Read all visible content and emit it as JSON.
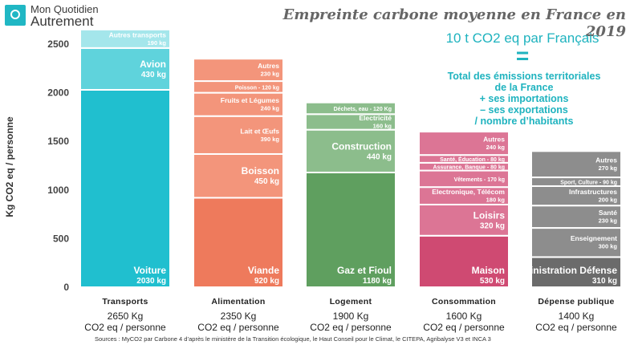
{
  "logo": {
    "line1": "Mon Quotidien",
    "line2": "Autrement"
  },
  "title": "Empreinte carbone moyenne en France en 2019",
  "subtitle": "10 t CO2 eq par Français",
  "equals_sign": "=",
  "definition_lines": [
    "Total des émissions territoriales",
    "de la France",
    "+ ses importations",
    "– ses exportations",
    "/ nombre d’habitants"
  ],
  "source": "Sources : MyCO2 par Carbone 4 d’après le ministère de la Transition écologique, le Haut Conseil pour le Climat, le CITEPA, Agribalyse V3 et INCA 3",
  "chart_data": {
    "type": "bar",
    "stacked": true,
    "ylabel": "Kg CO2 eq / personne",
    "ylim": [
      0,
      2650
    ],
    "yticks": [
      0,
      500,
      1000,
      1500,
      2000,
      2500
    ],
    "grid": false,
    "categories": [
      {
        "name": "Transports",
        "total_label": "2650 Kg",
        "unit_label": "CO2 eq / personne",
        "color": "#20bfcf",
        "segments": [
          {
            "label": "Voiture",
            "value_label": "2030 kg",
            "value": 2030,
            "color": "#20bfcf"
          },
          {
            "label": "Avion",
            "value_label": "430 kg",
            "value": 430,
            "color": "#5fd3dc"
          },
          {
            "label": "Autres transports",
            "value_label": "190 kg",
            "value": 190,
            "color": "#a4e6eb"
          }
        ]
      },
      {
        "name": "Alimentation",
        "total_label": "2350 Kg",
        "unit_label": "CO2 eq / personne",
        "color": "#ee7a5c",
        "segments": [
          {
            "label": "Viande",
            "value_label": "920 kg",
            "value": 920,
            "color": "#ee7a5c"
          },
          {
            "label": "Boisson",
            "value_label": "450 kg",
            "value": 450,
            "color": "#f3957b"
          },
          {
            "label": "Lait et Œufs",
            "value_label": "390 kg",
            "value": 390,
            "color": "#f3957b"
          },
          {
            "label": "Fruits et Légumes",
            "value_label": "240 kg",
            "value": 240,
            "color": "#f3957b"
          },
          {
            "label": "Poisson - 120 kg",
            "value_label": "",
            "value": 120,
            "color": "#f3957b"
          },
          {
            "label": "Autres",
            "value_label": "230 kg",
            "value": 230,
            "color": "#f3957b"
          }
        ]
      },
      {
        "name": "Logement",
        "total_label": "1900 Kg",
        "unit_label": "CO2 eq / personne",
        "color": "#5f9f5f",
        "segments": [
          {
            "label": "Gaz et Fioul",
            "value_label": "1180 kg",
            "value": 1180,
            "color": "#5f9f5f"
          },
          {
            "label": "Construction",
            "value_label": "440 kg",
            "value": 440,
            "color": "#8cbd8c"
          },
          {
            "label": "Electricité",
            "value_label": "160 kg",
            "value": 160,
            "color": "#8cbd8c"
          },
          {
            "label": "Déchets, eau - 120 Kg",
            "value_label": "",
            "value": 120,
            "color": "#8cbd8c"
          }
        ]
      },
      {
        "name": "Consommation",
        "total_label": "1600 Kg",
        "unit_label": "CO2 eq / personne",
        "color": "#cf4a72",
        "segments": [
          {
            "label": "Maison",
            "value_label": "530 kg",
            "value": 530,
            "color": "#cf4a72"
          },
          {
            "label": "Loisirs",
            "value_label": "320 kg",
            "value": 320,
            "color": "#dc7595"
          },
          {
            "label": "Electronique, Télécom",
            "value_label": "180 kg",
            "value": 180,
            "color": "#dc7595"
          },
          {
            "label": "Vêtements - 170 kg",
            "value_label": "",
            "value": 170,
            "color": "#dc7595"
          },
          {
            "label": "Assurance, Banque - 80 kg",
            "value_label": "",
            "value": 80,
            "color": "#dc7595"
          },
          {
            "label": "Santé, Éducation - 80 kg",
            "value_label": "",
            "value": 80,
            "color": "#dc7595"
          },
          {
            "label": "Autres",
            "value_label": "240 kg",
            "value": 240,
            "color": "#dc7595"
          }
        ]
      },
      {
        "name": "Dépense publique",
        "total_label": "1400 Kg",
        "unit_label": "CO2 eq / personne",
        "color": "#6b6b6b",
        "segments": [
          {
            "label": "Administration Défense",
            "value_label": "310 kg",
            "value": 310,
            "color": "#6b6b6b"
          },
          {
            "label": "Enseignement",
            "value_label": "300 kg",
            "value": 300,
            "color": "#8d8d8d"
          },
          {
            "label": "Santé",
            "value_label": "230 kg",
            "value": 230,
            "color": "#8d8d8d"
          },
          {
            "label": "Infrastructures",
            "value_label": "200 kg",
            "value": 200,
            "color": "#8d8d8d"
          },
          {
            "label": "Sport, Culture - 90 kg",
            "value_label": "",
            "value": 90,
            "color": "#8d8d8d"
          },
          {
            "label": "Autres",
            "value_label": "270 kg",
            "value": 270,
            "color": "#8d8d8d"
          }
        ]
      }
    ]
  }
}
